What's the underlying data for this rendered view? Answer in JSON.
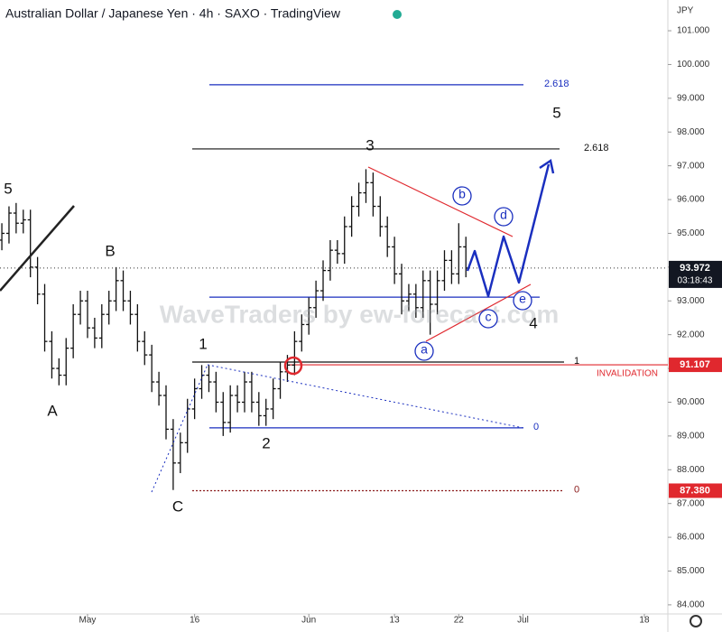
{
  "chart_data": {
    "type": "ohlc",
    "title": "Australian Dollar / Japanese Yen · 4h · SAXO · TradingView",
    "currency": "JPY",
    "watermark": "WaveTraders by ew-forecast.com",
    "color": "#111111",
    "x": [
      -12,
      -11,
      -10,
      -9,
      -8,
      -7,
      -6,
      -5,
      -4,
      -3,
      -2,
      -1,
      0,
      1,
      2,
      3,
      4,
      5,
      6,
      7,
      8,
      9,
      10,
      11,
      12,
      13,
      14,
      15,
      16,
      17,
      18,
      19,
      20,
      21,
      22,
      23,
      24,
      25,
      26,
      27,
      28,
      29,
      30,
      31,
      32,
      33,
      34,
      35,
      36,
      37,
      38,
      39,
      40,
      41,
      42,
      43,
      44,
      45,
      46,
      47,
      48,
      49,
      50,
      51,
      52,
      53
    ],
    "open": [
      94.8,
      95.0,
      95.6,
      95.3,
      95.4,
      94.0,
      93.2,
      91.8,
      91.0,
      90.8,
      91.6,
      92.6,
      93.0,
      92.2,
      91.9,
      92.6,
      93.0,
      93.6,
      93.0,
      92.6,
      91.8,
      91.4,
      90.6,
      90.2,
      89.2,
      88.2,
      88.8,
      89.8,
      90.4,
      90.8,
      90.6,
      90.0,
      89.4,
      90.2,
      90.0,
      90.6,
      90.0,
      89.6,
      89.8,
      90.4,
      90.9,
      91.1,
      91.8,
      92.3,
      92.8,
      93.3,
      93.9,
      94.5,
      94.4,
      95.2,
      95.8,
      96.2,
      96.5,
      95.8,
      95.2,
      94.6,
      93.8,
      93.0,
      93.2,
      92.8,
      93.6,
      92.9,
      93.6,
      94.2,
      93.8,
      94.6
    ],
    "high": [
      95.3,
      95.8,
      95.9,
      95.7,
      95.7,
      94.3,
      93.5,
      92.1,
      91.3,
      91.9,
      92.9,
      93.3,
      93.3,
      92.5,
      92.9,
      93.3,
      94.0,
      93.9,
      93.3,
      92.9,
      92.1,
      91.7,
      90.9,
      90.5,
      89.5,
      89.1,
      90.1,
      90.7,
      91.1,
      91.1,
      90.9,
      90.3,
      90.5,
      90.5,
      90.9,
      90.9,
      90.3,
      90.1,
      90.7,
      91.2,
      91.4,
      92.1,
      92.6,
      93.1,
      93.6,
      94.2,
      94.8,
      94.8,
      95.5,
      96.1,
      96.5,
      96.9,
      96.8,
      96.1,
      95.5,
      94.9,
      94.1,
      93.5,
      93.5,
      93.9,
      93.9,
      93.9,
      94.5,
      94.5,
      95.3,
      94.9
    ],
    "low": [
      94.5,
      94.7,
      95.0,
      95.0,
      93.7,
      92.9,
      91.5,
      90.7,
      90.5,
      90.5,
      91.3,
      92.3,
      91.9,
      91.6,
      91.6,
      92.3,
      92.7,
      92.7,
      92.3,
      91.5,
      91.1,
      90.3,
      89.9,
      88.9,
      87.4,
      87.9,
      88.5,
      89.5,
      90.1,
      90.3,
      89.7,
      89.0,
      89.1,
      89.7,
      89.7,
      89.7,
      89.3,
      89.3,
      89.5,
      90.1,
      90.6,
      90.8,
      91.5,
      92.0,
      92.5,
      93.0,
      93.6,
      94.1,
      94.1,
      94.9,
      95.5,
      95.9,
      95.5,
      94.9,
      94.3,
      93.5,
      92.6,
      92.7,
      92.5,
      92.5,
      92.0,
      92.6,
      93.3,
      93.5,
      93.5,
      93.7
    ],
    "close": [
      95.0,
      95.6,
      95.3,
      95.4,
      94.0,
      93.2,
      91.8,
      91.0,
      90.8,
      91.6,
      92.6,
      93.0,
      92.2,
      91.9,
      92.6,
      93.0,
      93.6,
      93.0,
      92.6,
      91.8,
      91.4,
      90.6,
      90.2,
      89.2,
      88.2,
      88.8,
      89.8,
      90.4,
      90.8,
      90.6,
      90.0,
      89.4,
      90.2,
      90.0,
      90.6,
      90.0,
      89.6,
      89.8,
      90.4,
      90.9,
      91.1,
      91.8,
      92.3,
      92.8,
      93.3,
      93.9,
      94.5,
      94.4,
      95.2,
      95.8,
      96.2,
      96.5,
      95.8,
      95.2,
      94.6,
      93.8,
      93.0,
      93.2,
      92.8,
      93.6,
      92.9,
      93.6,
      94.2,
      93.8,
      94.6,
      93.972
    ],
    "xlim": [
      -12.26,
      81.29
    ],
    "xticks": [
      {
        "value": 0,
        "label": "May"
      },
      {
        "value": 15,
        "label": "16"
      },
      {
        "value": 31,
        "label": "Jun"
      },
      {
        "value": 43,
        "label": "13"
      },
      {
        "value": 52,
        "label": "22"
      },
      {
        "value": 61,
        "label": "Jul"
      },
      {
        "value": 78,
        "label": "18"
      }
    ],
    "ylim": [
      83.73,
      101.91
    ],
    "yticks": [
      {
        "value": 84,
        "label": "84.000"
      },
      {
        "value": 85,
        "label": "85.000"
      },
      {
        "value": 86,
        "label": "86.000"
      },
      {
        "value": 87,
        "label": "87.000"
      },
      {
        "value": 88,
        "label": "88.000"
      },
      {
        "value": 89,
        "label": "89.000"
      },
      {
        "value": 90,
        "label": "90.000"
      },
      {
        "value": 91,
        "label": "91.000"
      },
      {
        "value": 92,
        "label": "92.000"
      },
      {
        "value": 93,
        "label": "93.000"
      },
      {
        "value": 94,
        "label": "94.000"
      },
      {
        "value": 95,
        "label": "95.000"
      },
      {
        "value": 96,
        "label": "96.000"
      },
      {
        "value": 97,
        "label": "97.000"
      },
      {
        "value": 98,
        "label": "98.000"
      },
      {
        "value": 99,
        "label": "99.000"
      },
      {
        "value": 100,
        "label": "100.000"
      },
      {
        "value": 101,
        "label": "101.000"
      }
    ],
    "levels": [
      {
        "value": 99.4,
        "label": "2.618",
        "color": "#1a2fbf"
      },
      {
        "value": 97.5,
        "label": "2.618",
        "color": "#111111"
      },
      {
        "value": 93.11,
        "color": "#1a2fbf"
      },
      {
        "value": 91.19,
        "label": "1",
        "color": "#111111"
      },
      {
        "value": 91.107,
        "label": "INVALIDATION",
        "color": "#e0282e"
      },
      {
        "value": 89.24,
        "label": "0",
        "color": "#1a2fbf"
      },
      {
        "value": 87.38,
        "label": "0",
        "color": "#8a1a1a"
      }
    ],
    "price_tags": [
      {
        "value": 93.972,
        "label": "93.972",
        "sub": "03:18:43",
        "color": "#131722"
      },
      {
        "value": 91.107,
        "label": "91.107",
        "color": "#e0282e"
      },
      {
        "value": 87.38,
        "label": "87.380",
        "color": "#e0282e"
      }
    ],
    "wave_labels": [
      "5",
      "A",
      "B",
      "C",
      "1",
      "2",
      "3",
      "4",
      "5"
    ],
    "circle_labels": [
      "a",
      "b",
      "c",
      "d",
      "e"
    ]
  }
}
